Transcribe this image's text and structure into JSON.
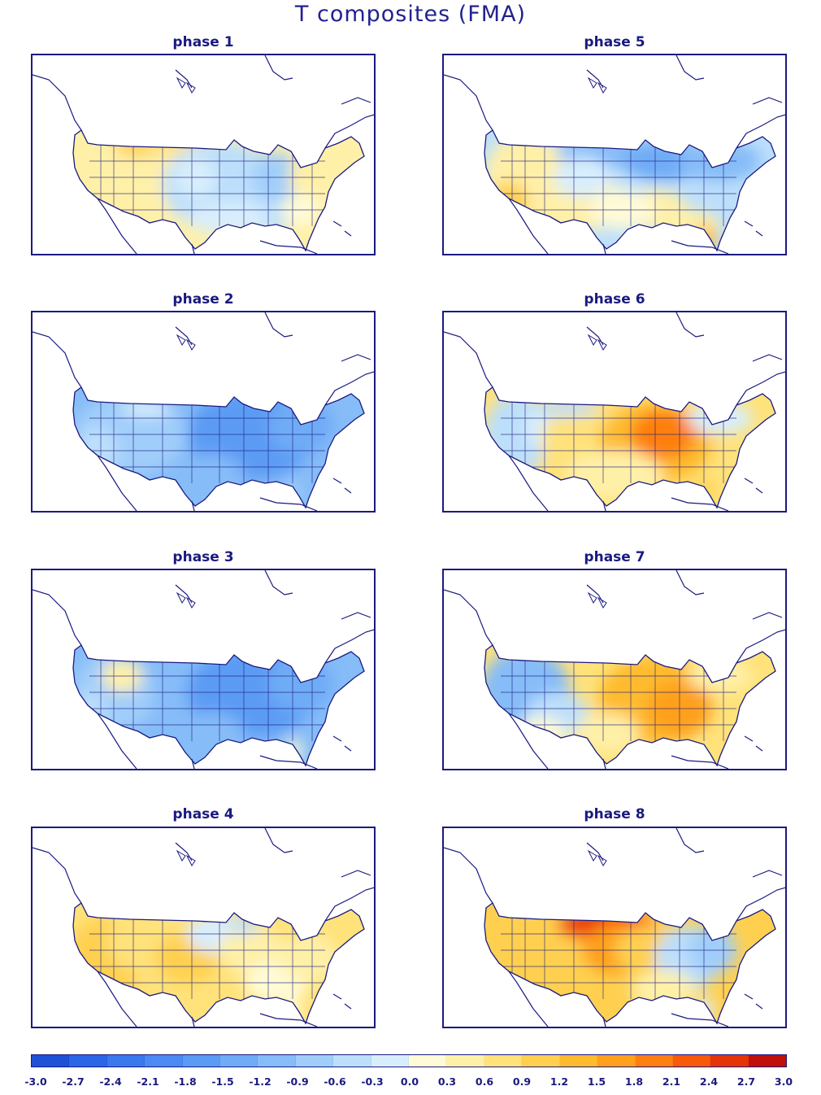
{
  "figure": {
    "title": "T composites (FMA)"
  },
  "panels": [
    {
      "label": "phase 1",
      "pattern": "phase1"
    },
    {
      "label": "phase 5",
      "pattern": "phase5"
    },
    {
      "label": "phase 2",
      "pattern": "phase2"
    },
    {
      "label": "phase 6",
      "pattern": "phase6"
    },
    {
      "label": "phase 3",
      "pattern": "phase3"
    },
    {
      "label": "phase 7",
      "pattern": "phase7"
    },
    {
      "label": "phase 4",
      "pattern": "phase4"
    },
    {
      "label": "phase 8",
      "pattern": "phase8"
    }
  ],
  "colorbar": {
    "ticks": [
      "-3.0",
      "-2.7",
      "-2.4",
      "-2.1",
      "-1.8",
      "-1.5",
      "-1.2",
      "-0.9",
      "-0.6",
      "-0.3",
      "0.0",
      "0.3",
      "0.6",
      "0.9",
      "1.2",
      "1.5",
      "1.8",
      "2.1",
      "2.4",
      "2.7",
      "3.0"
    ],
    "colors": [
      "#1e50d8",
      "#2a66e6",
      "#3a78ee",
      "#4a8af2",
      "#5c9bf4",
      "#70acf6",
      "#86bcf8",
      "#a0cefa",
      "#bcdffb",
      "#d8eefc",
      "#fffbd6",
      "#fff0a8",
      "#ffe27a",
      "#ffd050",
      "#ffbb2e",
      "#ffa01a",
      "#ff7e10",
      "#f85a0a",
      "#e53508",
      "#c01008"
    ]
  },
  "colors": {
    "outline": "#1a1a80",
    "land_default": "#ffffff"
  }
}
